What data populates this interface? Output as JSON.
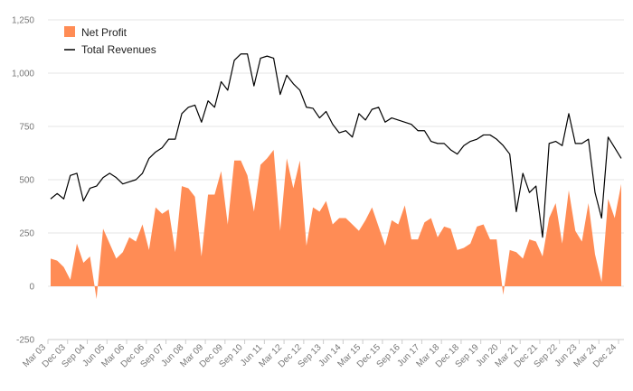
{
  "chart_data": {
    "type": "area",
    "title": "",
    "xlabel": "",
    "ylabel": "",
    "ylim": [
      -250,
      1250
    ],
    "yticks": [
      -250,
      0,
      250,
      500,
      750,
      1000,
      1250
    ],
    "ytick_labels": [
      "-250",
      "0",
      "250",
      "500",
      "750",
      "1,000",
      "1,250"
    ],
    "grid": true,
    "legend_position": "top-left",
    "x_tick_labels": [
      "Mar 03",
      "Dec 03",
      "Sep 04",
      "Jun 05",
      "Mar 06",
      "Dec 06",
      "Sep 07",
      "Jun 08",
      "Mar 09",
      "Dec 09",
      "Sep 10",
      "Jun 11",
      "Mar 12",
      "Dec 12",
      "Sep 13",
      "Jun 14",
      "Mar 15",
      "Dec 15",
      "Sep 16",
      "Jun 17",
      "Mar 18",
      "Dec 18",
      "Sep 19",
      "Jun 20",
      "Mar 21",
      "Dec 21",
      "Sep 22",
      "Jun 23",
      "Mar 24",
      "Dec 24"
    ],
    "series": [
      {
        "name": "Net Profit",
        "kind": "area",
        "color": "#ff8c55",
        "values": [
          130,
          120,
          90,
          30,
          200,
          110,
          140,
          -60,
          270,
          200,
          130,
          160,
          230,
          210,
          290,
          170,
          370,
          340,
          360,
          160,
          470,
          460,
          420,
          140,
          430,
          430,
          540,
          290,
          590,
          590,
          520,
          350,
          570,
          600,
          640,
          260,
          600,
          460,
          590,
          190,
          370,
          350,
          400,
          290,
          320,
          320,
          290,
          260,
          310,
          370,
          280,
          190,
          310,
          290,
          380,
          220,
          220,
          300,
          320,
          230,
          280,
          270,
          170,
          180,
          200,
          280,
          290,
          220,
          220,
          -40,
          170,
          160,
          130,
          220,
          210,
          140,
          320,
          390,
          200,
          450,
          260,
          210,
          390,
          150,
          20,
          410,
          320,
          480
        ]
      },
      {
        "name": "Total Revenues",
        "kind": "line",
        "color": "#000000",
        "values": [
          410,
          435,
          410,
          520,
          530,
          400,
          460,
          470,
          510,
          530,
          510,
          480,
          490,
          500,
          530,
          600,
          630,
          650,
          690,
          690,
          810,
          840,
          850,
          770,
          870,
          840,
          960,
          920,
          1060,
          1090,
          1090,
          940,
          1070,
          1080,
          1070,
          900,
          990,
          950,
          920,
          840,
          835,
          790,
          820,
          760,
          720,
          730,
          700,
          810,
          780,
          830,
          840,
          770,
          790,
          780,
          770,
          760,
          730,
          730,
          680,
          670,
          670,
          640,
          620,
          660,
          680,
          690,
          710,
          710,
          690,
          660,
          620,
          350,
          530,
          440,
          470,
          230,
          670,
          680,
          660,
          810,
          670,
          670,
          690,
          440,
          320,
          700,
          650,
          600
        ]
      }
    ]
  }
}
